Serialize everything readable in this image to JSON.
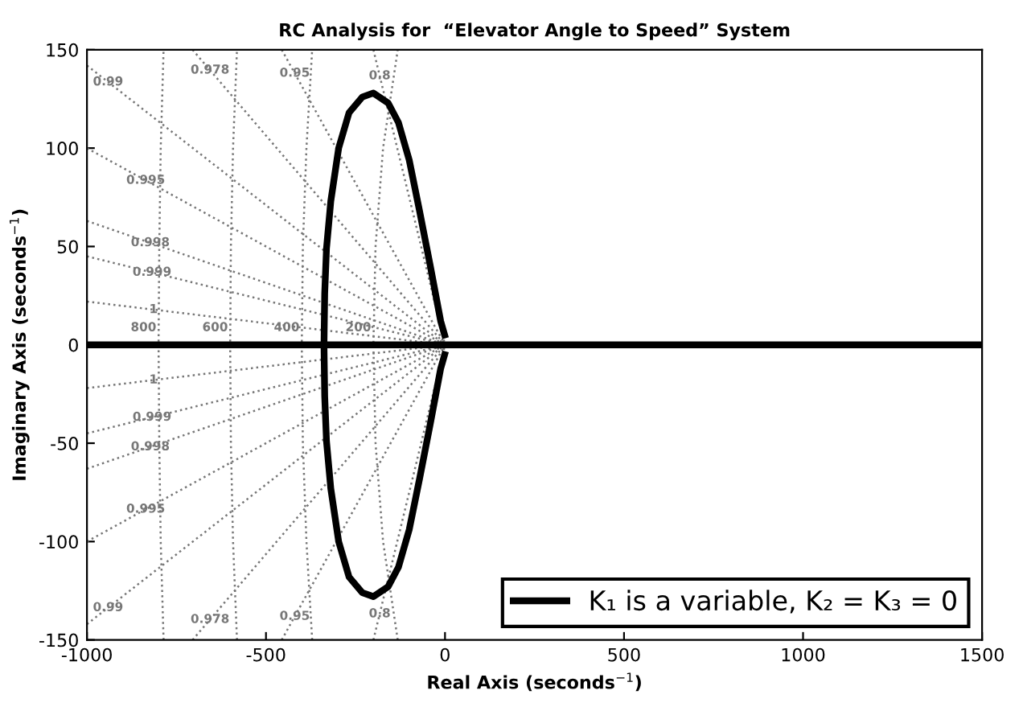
{
  "chart_data": {
    "type": "line",
    "title": "RC Analysis for  “Elevator Angle to Speed” System",
    "xlabel": "Real Axis (seconds$^{−1}$)",
    "ylabel": "Imaginary Axis (seconds$^{−1}$)",
    "xlim": [
      -1000,
      1500
    ],
    "xticks": [
      -1000,
      -500,
      0,
      500,
      1000,
      1500
    ],
    "ylim": [
      -150,
      150
    ],
    "yticks": [
      -150,
      -100,
      -50,
      0,
      50,
      100,
      150
    ],
    "grid": false,
    "legend": "bottom right",
    "series": [
      {
        "name": "0.99",
        "color": "#777777",
        "line_style": "dotted",
        "x": [
          -1000,
          0
        ],
        "values": [
          142,
          0
        ]
      },
      {
        "name": "0.995",
        "color": "#777777",
        "line_style": "dotted",
        "x": [
          -1000,
          0
        ],
        "values": [
          100,
          0
        ]
      },
      {
        "name": "0.998",
        "color": "#777777",
        "line_style": "dotted",
        "x": [
          -1000,
          0
        ],
        "values": [
          63,
          0
        ]
      },
      {
        "name": "0.999",
        "color": "#777777",
        "line_style": "dotted",
        "x": [
          -1000,
          0
        ],
        "values": [
          45,
          0
        ]
      },
      {
        "name": "1",
        "color": "#777777",
        "line_style": "dotted",
        "x": [
          -1000,
          0
        ],
        "values": [
          22,
          0
        ]
      },
      {
        "name": "0.978",
        "color": "#777777",
        "line_style": "dotted",
        "x": [
          -705,
          0
        ],
        "values": [
          150,
          0
        ]
      },
      {
        "name": "0.95",
        "color": "#777777",
        "line_style": "dotted",
        "x": [
          -456,
          0
        ],
        "values": [
          150,
          0
        ]
      },
      {
        "name": "0.8",
        "color": "#777777",
        "line_style": "dotted",
        "x": [
          -200,
          0
        ],
        "values": [
          150,
          0
        ]
      },
      {
        "name": "0.99",
        "color": "#777777",
        "line_style": "dotted",
        "x": [
          -1000,
          0
        ],
        "values": [
          -142,
          0
        ]
      },
      {
        "name": "0.995",
        "color": "#777777",
        "line_style": "dotted",
        "x": [
          -1000,
          0
        ],
        "values": [
          -100,
          0
        ]
      },
      {
        "name": "0.998",
        "color": "#777777",
        "line_style": "dotted",
        "x": [
          -1000,
          0
        ],
        "values": [
          -63,
          0
        ]
      },
      {
        "name": "0.999",
        "color": "#777777",
        "line_style": "dotted",
        "x": [
          -1000,
          0
        ],
        "values": [
          -45,
          0
        ]
      },
      {
        "name": "1",
        "color": "#777777",
        "line_style": "dotted",
        "x": [
          -1000,
          0
        ],
        "values": [
          -22,
          0
        ]
      },
      {
        "name": "0.978",
        "color": "#777777",
        "line_style": "dotted",
        "x": [
          -705,
          0
        ],
        "values": [
          -150,
          0
        ]
      },
      {
        "name": "0.95",
        "color": "#777777",
        "line_style": "dotted",
        "x": [
          -456,
          0
        ],
        "values": [
          -150,
          0
        ]
      },
      {
        "name": "0.8",
        "color": "#777777",
        "line_style": "dotted",
        "x": [
          -200,
          0
        ],
        "values": [
          -150,
          0
        ]
      },
      {
        "name": "800",
        "color": "#777777",
        "line_style": "dotted",
        "x": [
          -786,
          -794,
          -798,
          -800,
          -798,
          -794,
          -786
        ],
        "values": [
          -150,
          -100,
          -50,
          0,
          50,
          100,
          150
        ]
      },
      {
        "name": "600",
        "color": "#777777",
        "line_style": "dotted",
        "x": [
          -581,
          -592,
          -598,
          -600,
          -598,
          -592,
          -581
        ],
        "values": [
          -150,
          -100,
          -50,
          0,
          50,
          100,
          150
        ]
      },
      {
        "name": "400",
        "color": "#777777",
        "line_style": "dotted",
        "x": [
          -371,
          -387,
          -397,
          -400,
          -397,
          -387,
          -371
        ],
        "values": [
          -150,
          -100,
          -50,
          0,
          50,
          100,
          150
        ]
      },
      {
        "name": "200",
        "color": "#777777",
        "line_style": "dotted",
        "x": [
          -132,
          -173,
          -194,
          -200,
          -194,
          -173,
          -132
        ],
        "values": [
          -150,
          -100,
          -50,
          0,
          50,
          100,
          150
        ]
      },
      {
        "color": "#000000",
        "line_style": "solid",
        "x": [
          -1000,
          1500
        ],
        "values": [
          0,
          0
        ]
      },
      {
        "name": "K₁ is a variable, K₂ = K₃ = 0",
        "color": "#000000",
        "line_style": "solid",
        "x": [
          -1,
          -12,
          -42,
          -71,
          -100,
          -130,
          -159,
          -200,
          -231,
          -268,
          -297,
          -319,
          -331,
          -336,
          -338,
          -336,
          -331,
          -319,
          -297,
          -268,
          -231,
          -200,
          -159,
          -130,
          -100,
          -71,
          -42,
          -12,
          -1
        ],
        "values": [
          5,
          12,
          41,
          68,
          94,
          113,
          123,
          128,
          126,
          118,
          100,
          73,
          49,
          26,
          0,
          -26,
          -49,
          -73,
          -100,
          -118,
          -126,
          -128,
          -123,
          -113,
          -94,
          -68,
          -41,
          -12,
          -5
        ]
      }
    ]
  }
}
